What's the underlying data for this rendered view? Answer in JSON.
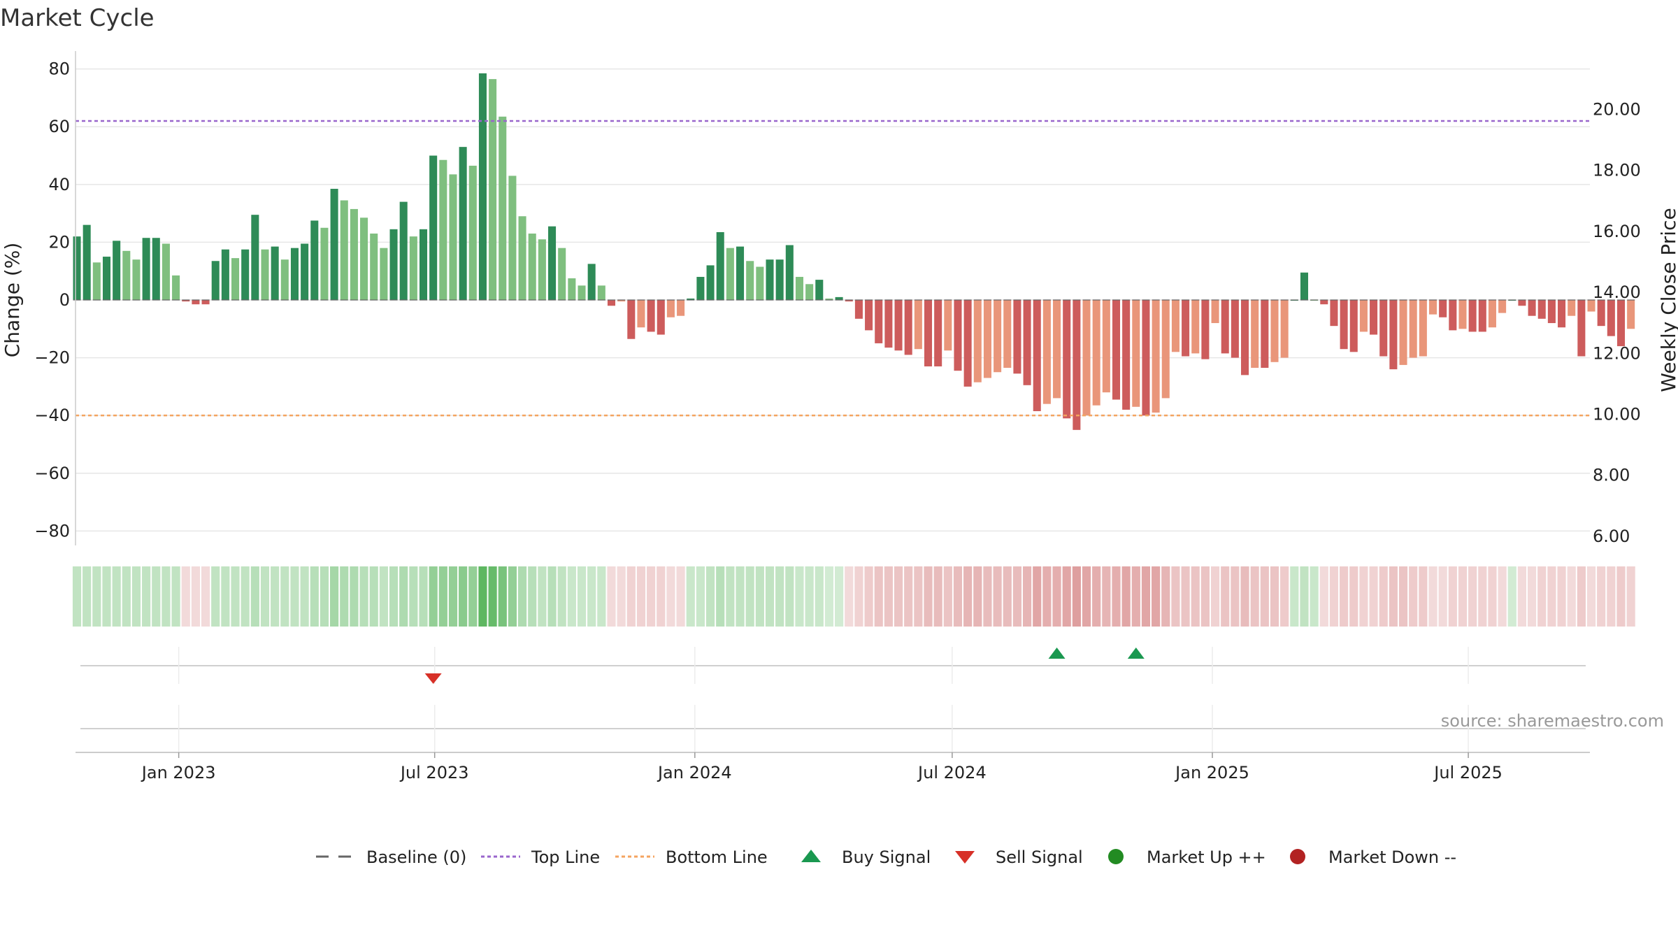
{
  "title": "Market Cycle",
  "source_text": "source: sharemaestro.com",
  "chart_data": {
    "type": "bar",
    "title": "Market Cycle",
    "ylabel": "Change (%)",
    "y2label": "Weekly Close Price",
    "ylim": [
      -85,
      85
    ],
    "y2lim": [
      5.7,
      21.8
    ],
    "yticks": [
      80,
      60,
      40,
      20,
      0,
      -20,
      -40,
      -60,
      -80
    ],
    "y2ticks": [
      "20.00",
      "18.00",
      "16.00",
      "14.00",
      "12.00",
      "10.00",
      "8.00",
      "6.00"
    ],
    "x_range": [
      "2022-10-20",
      "2025-09-25"
    ],
    "x_ticks": [
      {
        "label": "Jan 2023",
        "date": "2023-01-01"
      },
      {
        "label": "Jul 2023",
        "date": "2023-07-01"
      },
      {
        "label": "Jan 2024",
        "date": "2024-01-01"
      },
      {
        "label": "Jul 2024",
        "date": "2024-07-01"
      },
      {
        "label": "Jan 2025",
        "date": "2025-01-01"
      },
      {
        "label": "Jul 2025",
        "date": "2025-07-01"
      }
    ],
    "first_week": "2022-10-21",
    "week_interval_days": 7,
    "series": [
      {
        "values": [
          22,
          26,
          13,
          15,
          20.5,
          17,
          14,
          21.5,
          21.5,
          19.5,
          8.5,
          -0.5,
          -1.5,
          -1.5,
          13.5,
          17.5,
          14.5,
          17.5,
          29.5,
          17.5,
          18.5,
          14,
          18,
          19.5,
          27.5,
          25,
          38.5,
          34.5,
          31.5,
          28.5,
          23,
          18,
          24.5,
          34,
          22,
          24.5,
          50,
          48.5,
          43.5,
          53,
          46.5,
          78.5,
          76.5,
          63.5,
          43,
          29,
          23,
          21,
          25.5,
          18,
          7.5,
          5,
          12.5,
          5,
          -2,
          -0.5,
          -13.5,
          -9.5,
          -11,
          -12,
          -6,
          -5.5,
          0.5,
          8,
          12,
          23.5,
          18,
          18.5,
          13.5,
          11.5,
          14,
          14,
          19,
          8,
          5.5,
          7,
          0.5,
          1,
          -0.5,
          -6.5,
          -10.5,
          -15,
          -16.5,
          -17.5,
          -19,
          -17,
          -23,
          -23,
          -17.5,
          -24.5,
          -30,
          -28.5,
          -27,
          -25,
          -23.5,
          -25.5,
          -29.5,
          -38.5,
          -36,
          -34,
          -41,
          -45,
          -40,
          -36.5,
          -32,
          -34.5,
          -38,
          -37,
          -40,
          -39,
          -34,
          -18,
          -19.5,
          -18.5,
          -20.5,
          -8,
          -18.5,
          -20,
          -26,
          -23.5,
          -23.5,
          -21.5,
          -20,
          0,
          9.5,
          0,
          -1.5,
          -9,
          -17,
          -18,
          -11,
          -12,
          -19.5,
          -24,
          -22.5,
          -20,
          -19.5,
          -5,
          -6,
          -10.5,
          -10,
          -11,
          -11,
          -9.5,
          -4.5,
          0,
          -2,
          -5.5,
          -6.5,
          -8,
          -9.5,
          -5.5,
          -19.5,
          -4,
          -9,
          -12.5,
          -16,
          -10
        ]
      }
    ],
    "heat_intensity": [
      0.35,
      0.35,
      0.35,
      0.35,
      0.35,
      0.35,
      0.35,
      0.35,
      0.35,
      0.35,
      0.35,
      0.25,
      0.25,
      0.25,
      0.35,
      0.35,
      0.35,
      0.35,
      0.4,
      0.35,
      0.35,
      0.35,
      0.35,
      0.35,
      0.4,
      0.4,
      0.5,
      0.45,
      0.45,
      0.4,
      0.4,
      0.35,
      0.4,
      0.45,
      0.4,
      0.4,
      0.6,
      0.6,
      0.6,
      0.65,
      0.6,
      0.9,
      0.85,
      0.75,
      0.6,
      0.45,
      0.4,
      0.35,
      0.4,
      0.35,
      0.3,
      0.3,
      0.3,
      0.3,
      0.25,
      0.25,
      0.3,
      0.3,
      0.3,
      0.3,
      0.25,
      0.25,
      0.3,
      0.3,
      0.35,
      0.4,
      0.35,
      0.35,
      0.35,
      0.35,
      0.35,
      0.35,
      0.35,
      0.3,
      0.3,
      0.3,
      0.25,
      0.25,
      0.25,
      0.3,
      0.35,
      0.4,
      0.4,
      0.4,
      0.4,
      0.4,
      0.45,
      0.45,
      0.4,
      0.45,
      0.5,
      0.5,
      0.45,
      0.45,
      0.45,
      0.45,
      0.5,
      0.6,
      0.55,
      0.55,
      0.6,
      0.65,
      0.6,
      0.55,
      0.5,
      0.55,
      0.6,
      0.55,
      0.6,
      0.6,
      0.5,
      0.4,
      0.4,
      0.4,
      0.4,
      0.3,
      0.4,
      0.4,
      0.45,
      0.4,
      0.4,
      0.4,
      0.35,
      0.3,
      0.35,
      0.3,
      0.25,
      0.3,
      0.35,
      0.35,
      0.3,
      0.3,
      0.35,
      0.4,
      0.4,
      0.35,
      0.35,
      0.25,
      0.25,
      0.3,
      0.3,
      0.3,
      0.3,
      0.3,
      0.25,
      0.25,
      0.25,
      0.25,
      0.3,
      0.3,
      0.3,
      0.25,
      0.35,
      0.25,
      0.3,
      0.3,
      0.35,
      0.3
    ],
    "signals": [
      {
        "type": "sell",
        "date": "2023-06-30"
      },
      {
        "type": "buy",
        "date": "2024-09-13"
      },
      {
        "type": "buy",
        "date": "2024-11-08"
      }
    ],
    "top_line": 62,
    "bottom_line": -40,
    "colors": {
      "pos_dark": "#2e8b57",
      "pos_light": "#7fbf7f",
      "neg_dark": "#cd5c5c",
      "neg_light": "#e9967a",
      "top_line": "#9966cc",
      "bottom_line": "#f4a460",
      "buy": "#1a9850",
      "sell": "#d73027",
      "market_up": "#228b22",
      "market_down": "#b22222",
      "baseline": "#666666",
      "grid": "#e6e6e6"
    },
    "legend": [
      {
        "label": "Baseline (0)",
        "symbol": "dash",
        "color": "#666666"
      },
      {
        "label": "Top Line",
        "symbol": "dot",
        "color": "#9966cc"
      },
      {
        "label": "Bottom Line",
        "symbol": "dot",
        "color": "#f4a460"
      },
      {
        "label": "Buy Signal",
        "symbol": "triangle-up",
        "color": "#1a9850"
      },
      {
        "label": "Sell Signal",
        "symbol": "triangle-down",
        "color": "#d73027"
      },
      {
        "label": "Market Up ++",
        "symbol": "circle",
        "color": "#228b22"
      },
      {
        "label": "Market Down --",
        "symbol": "circle",
        "color": "#b22222"
      }
    ],
    "legend_position": "bottom",
    "grid": true
  }
}
